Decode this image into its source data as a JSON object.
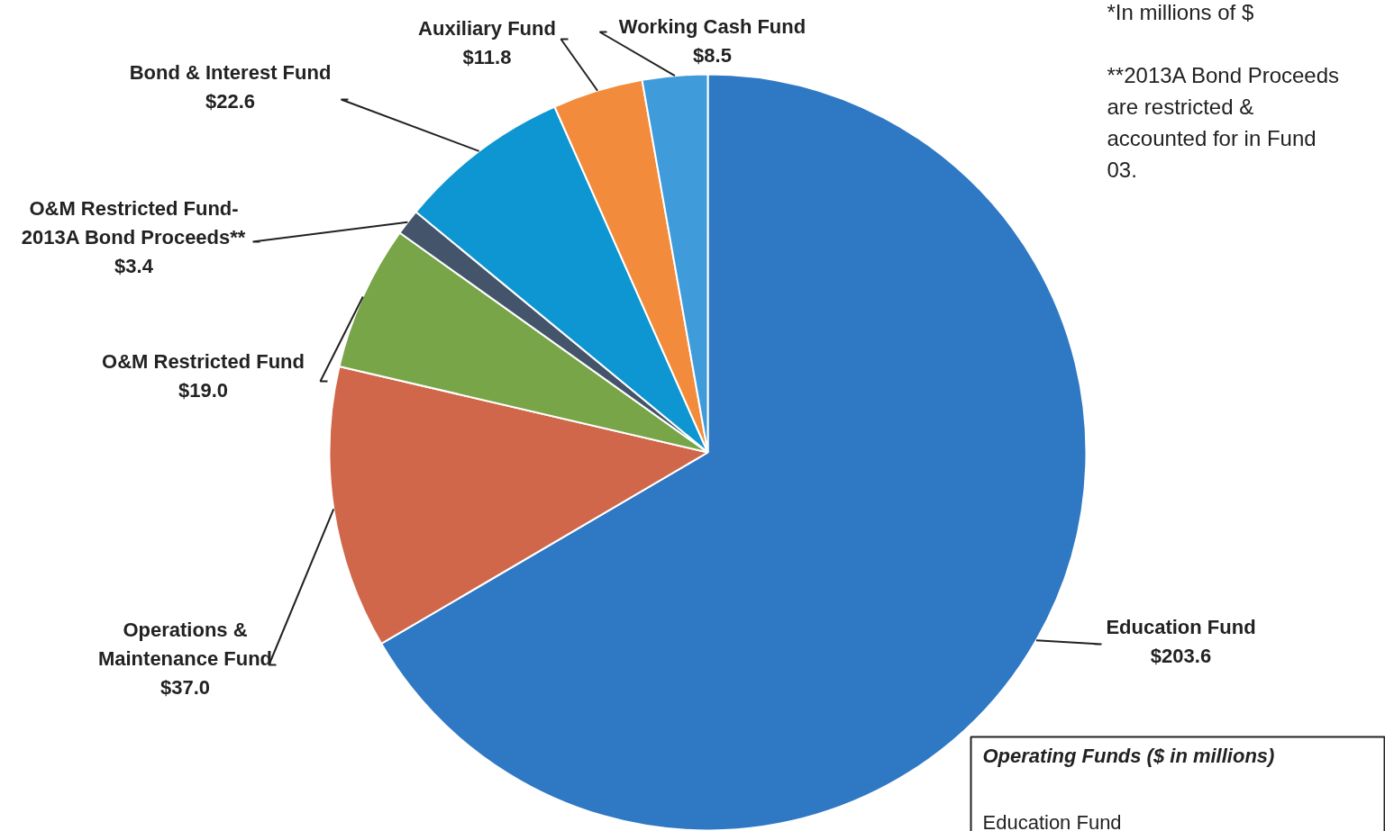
{
  "chart_data": {
    "type": "pie",
    "categories": [
      "Education Fund",
      "Operations &\nMaintenance Fund",
      "O&M Restricted Fund",
      "O&M Restricted Fund-\n2013A Bond Proceeds**",
      "Bond & Interest Fund",
      "Auxiliary Fund",
      "Working Cash Fund"
    ],
    "values": [
      203.6,
      37.0,
      19.0,
      3.4,
      22.6,
      11.8,
      8.5
    ],
    "colors": [
      "#2f78c4",
      "#d0674a",
      "#77a547",
      "#44546a",
      "#0e96d2",
      "#f28c3c",
      "#3f9bd9"
    ],
    "value_labels": [
      "$203.6",
      "$37.0",
      "$19.0",
      "$3.4",
      "$22.6",
      "$11.8",
      "$8.5"
    ],
    "annotations": [
      "*In millions of $",
      "**2013A Bond Proceeds are restricted & accounted for in Fund 03.",
      "Operating Funds ($ in millions)",
      "Education Fund"
    ]
  }
}
